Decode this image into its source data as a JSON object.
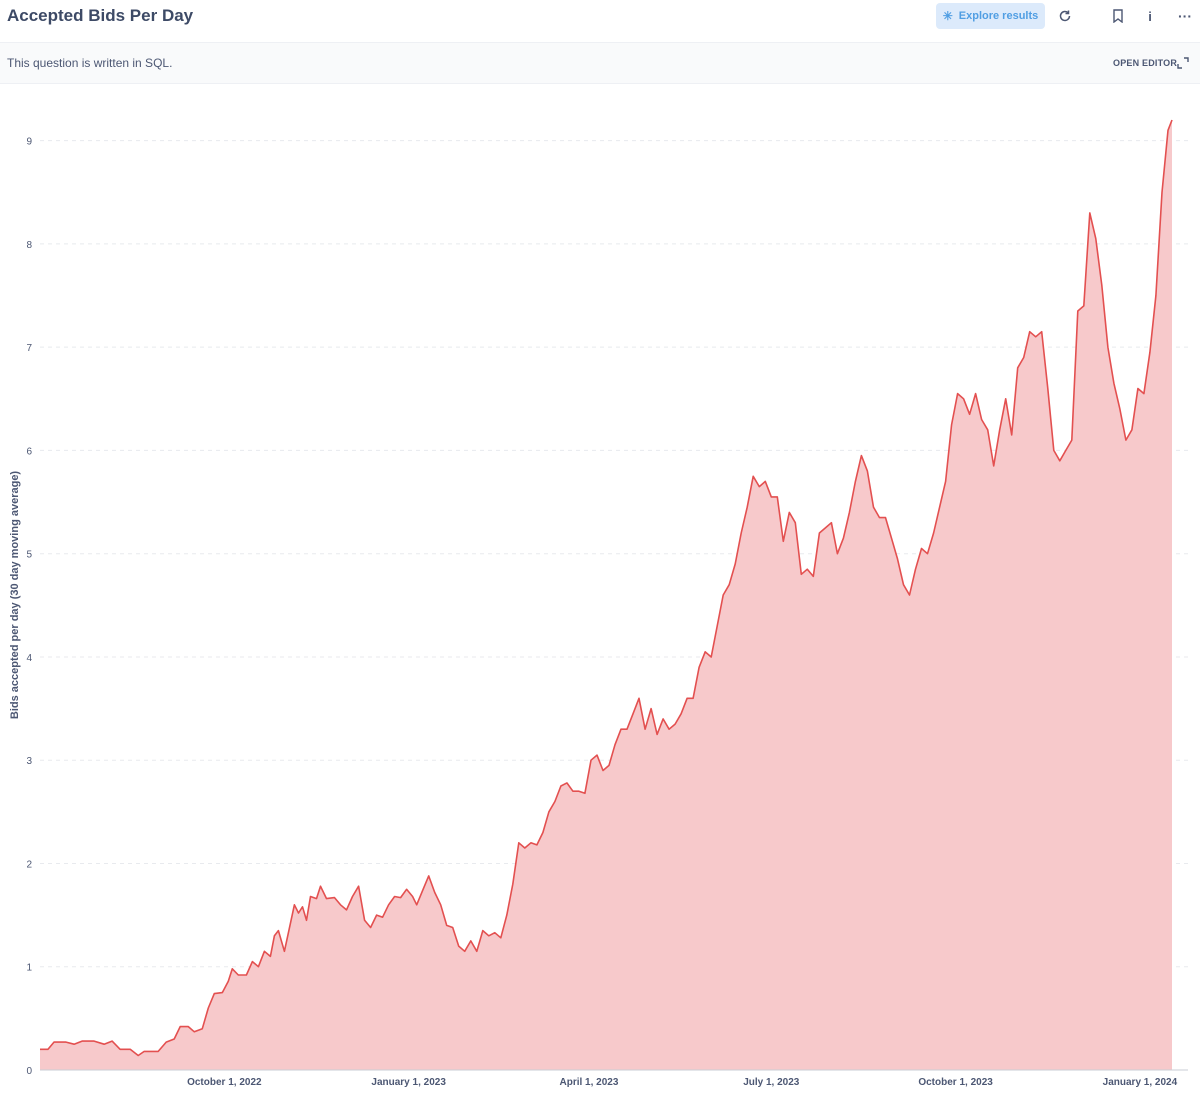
{
  "header": {
    "title": "Accepted Bids Per Day",
    "explore_label": "Explore results",
    "icons": [
      "refresh-icon",
      "bookmark-icon",
      "info-icon",
      "more-icon"
    ]
  },
  "subbar": {
    "text": "This question is written in SQL.",
    "open_editor_label": "OPEN EDITOR"
  },
  "colors": {
    "line": "#e35050",
    "fill": "#f7c9cb",
    "accent": "#509ee3"
  },
  "chart_data": {
    "type": "area",
    "ylabel": "Bids accepted per day (30 day moving average)",
    "xlabel": "",
    "ylim": [
      0,
      9.2
    ],
    "yticks": [
      0,
      1,
      2,
      3,
      4,
      5,
      6,
      7,
      8,
      9
    ],
    "xlim": [
      "2022-07-01",
      "2024-01-25"
    ],
    "xticks": [
      {
        "date": "2022-10-01",
        "label": "October 1, 2022"
      },
      {
        "date": "2023-01-01",
        "label": "January 1, 2023"
      },
      {
        "date": "2023-04-01",
        "label": "April 1, 2023"
      },
      {
        "date": "2023-07-01",
        "label": "July 1, 2023"
      },
      {
        "date": "2023-10-01",
        "label": "October 1, 2023"
      },
      {
        "date": "2024-01-01",
        "label": "January 1, 2024"
      }
    ],
    "grid": true,
    "series": [
      {
        "points": [
          [
            "2022-07-01",
            0.2
          ],
          [
            "2022-07-05",
            0.2
          ],
          [
            "2022-07-08",
            0.27
          ],
          [
            "2022-07-14",
            0.27
          ],
          [
            "2022-07-18",
            0.25
          ],
          [
            "2022-07-22",
            0.28
          ],
          [
            "2022-07-28",
            0.28
          ],
          [
            "2022-08-02",
            0.25
          ],
          [
            "2022-08-06",
            0.28
          ],
          [
            "2022-08-10",
            0.2
          ],
          [
            "2022-08-15",
            0.2
          ],
          [
            "2022-08-19",
            0.14
          ],
          [
            "2022-08-22",
            0.18
          ],
          [
            "2022-08-29",
            0.18
          ],
          [
            "2022-09-02",
            0.27
          ],
          [
            "2022-09-06",
            0.3
          ],
          [
            "2022-09-09",
            0.42
          ],
          [
            "2022-09-13",
            0.42
          ],
          [
            "2022-09-16",
            0.37
          ],
          [
            "2022-09-20",
            0.4
          ],
          [
            "2022-09-23",
            0.6
          ],
          [
            "2022-09-26",
            0.74
          ],
          [
            "2022-09-30",
            0.75
          ],
          [
            "2022-10-03",
            0.86
          ],
          [
            "2022-10-05",
            0.98
          ],
          [
            "2022-10-08",
            0.92
          ],
          [
            "2022-10-12",
            0.92
          ],
          [
            "2022-10-15",
            1.05
          ],
          [
            "2022-10-18",
            1.0
          ],
          [
            "2022-10-21",
            1.15
          ],
          [
            "2022-10-24",
            1.1
          ],
          [
            "2022-10-26",
            1.3
          ],
          [
            "2022-10-28",
            1.35
          ],
          [
            "2022-10-31",
            1.15
          ],
          [
            "2022-11-03",
            1.42
          ],
          [
            "2022-11-05",
            1.6
          ],
          [
            "2022-11-07",
            1.52
          ],
          [
            "2022-11-09",
            1.58
          ],
          [
            "2022-11-11",
            1.45
          ],
          [
            "2022-11-13",
            1.68
          ],
          [
            "2022-11-16",
            1.66
          ],
          [
            "2022-11-18",
            1.78
          ],
          [
            "2022-11-21",
            1.66
          ],
          [
            "2022-11-25",
            1.67
          ],
          [
            "2022-11-28",
            1.6
          ],
          [
            "2022-12-01",
            1.55
          ],
          [
            "2022-12-04",
            1.68
          ],
          [
            "2022-12-07",
            1.78
          ],
          [
            "2022-12-10",
            1.45
          ],
          [
            "2022-12-13",
            1.38
          ],
          [
            "2022-12-16",
            1.5
          ],
          [
            "2022-12-19",
            1.48
          ],
          [
            "2022-12-22",
            1.6
          ],
          [
            "2022-12-25",
            1.68
          ],
          [
            "2022-12-28",
            1.67
          ],
          [
            "2022-12-31",
            1.75
          ],
          [
            "2023-01-03",
            1.68
          ],
          [
            "2023-01-05",
            1.6
          ],
          [
            "2023-01-08",
            1.74
          ],
          [
            "2023-01-11",
            1.88
          ],
          [
            "2023-01-14",
            1.72
          ],
          [
            "2023-01-17",
            1.6
          ],
          [
            "2023-01-20",
            1.4
          ],
          [
            "2023-01-23",
            1.38
          ],
          [
            "2023-01-26",
            1.2
          ],
          [
            "2023-01-29",
            1.15
          ],
          [
            "2023-02-01",
            1.25
          ],
          [
            "2023-02-04",
            1.15
          ],
          [
            "2023-02-07",
            1.35
          ],
          [
            "2023-02-10",
            1.3
          ],
          [
            "2023-02-13",
            1.33
          ],
          [
            "2023-02-16",
            1.28
          ],
          [
            "2023-02-19",
            1.5
          ],
          [
            "2023-02-22",
            1.8
          ],
          [
            "2023-02-25",
            2.2
          ],
          [
            "2023-02-28",
            2.15
          ],
          [
            "2023-03-03",
            2.2
          ],
          [
            "2023-03-06",
            2.18
          ],
          [
            "2023-03-09",
            2.3
          ],
          [
            "2023-03-12",
            2.5
          ],
          [
            "2023-03-15",
            2.6
          ],
          [
            "2023-03-18",
            2.75
          ],
          [
            "2023-03-21",
            2.78
          ],
          [
            "2023-03-24",
            2.7
          ],
          [
            "2023-03-27",
            2.7
          ],
          [
            "2023-03-30",
            2.68
          ],
          [
            "2023-04-02",
            3.0
          ],
          [
            "2023-04-05",
            3.05
          ],
          [
            "2023-04-08",
            2.9
          ],
          [
            "2023-04-11",
            2.95
          ],
          [
            "2023-04-14",
            3.15
          ],
          [
            "2023-04-17",
            3.3
          ],
          [
            "2023-04-20",
            3.3
          ],
          [
            "2023-04-23",
            3.45
          ],
          [
            "2023-04-26",
            3.6
          ],
          [
            "2023-04-29",
            3.3
          ],
          [
            "2023-05-02",
            3.5
          ],
          [
            "2023-05-05",
            3.25
          ],
          [
            "2023-05-08",
            3.4
          ],
          [
            "2023-05-11",
            3.3
          ],
          [
            "2023-05-14",
            3.35
          ],
          [
            "2023-05-17",
            3.45
          ],
          [
            "2023-05-20",
            3.6
          ],
          [
            "2023-05-23",
            3.6
          ],
          [
            "2023-05-26",
            3.9
          ],
          [
            "2023-05-29",
            4.05
          ],
          [
            "2023-06-01",
            4.0
          ],
          [
            "2023-06-04",
            4.3
          ],
          [
            "2023-06-07",
            4.6
          ],
          [
            "2023-06-10",
            4.7
          ],
          [
            "2023-06-13",
            4.9
          ],
          [
            "2023-06-16",
            5.2
          ],
          [
            "2023-06-19",
            5.45
          ],
          [
            "2023-06-22",
            5.75
          ],
          [
            "2023-06-25",
            5.65
          ],
          [
            "2023-06-28",
            5.7
          ],
          [
            "2023-07-01",
            5.55
          ],
          [
            "2023-07-04",
            5.55
          ],
          [
            "2023-07-07",
            5.12
          ],
          [
            "2023-07-10",
            5.4
          ],
          [
            "2023-07-13",
            5.3
          ],
          [
            "2023-07-16",
            4.8
          ],
          [
            "2023-07-19",
            4.85
          ],
          [
            "2023-07-22",
            4.78
          ],
          [
            "2023-07-25",
            5.2
          ],
          [
            "2023-07-28",
            5.25
          ],
          [
            "2023-07-31",
            5.3
          ],
          [
            "2023-08-03",
            5.0
          ],
          [
            "2023-08-06",
            5.15
          ],
          [
            "2023-08-09",
            5.4
          ],
          [
            "2023-08-12",
            5.7
          ],
          [
            "2023-08-15",
            5.95
          ],
          [
            "2023-08-18",
            5.8
          ],
          [
            "2023-08-21",
            5.45
          ],
          [
            "2023-08-24",
            5.35
          ],
          [
            "2023-08-27",
            5.35
          ],
          [
            "2023-08-30",
            5.15
          ],
          [
            "2023-09-02",
            4.95
          ],
          [
            "2023-09-05",
            4.7
          ],
          [
            "2023-09-08",
            4.6
          ],
          [
            "2023-09-11",
            4.85
          ],
          [
            "2023-09-14",
            5.05
          ],
          [
            "2023-09-17",
            5.0
          ],
          [
            "2023-09-20",
            5.2
          ],
          [
            "2023-09-23",
            5.45
          ],
          [
            "2023-09-26",
            5.7
          ],
          [
            "2023-09-29",
            6.25
          ],
          [
            "2023-10-02",
            6.55
          ],
          [
            "2023-10-05",
            6.5
          ],
          [
            "2023-10-08",
            6.35
          ],
          [
            "2023-10-11",
            6.55
          ],
          [
            "2023-10-14",
            6.3
          ],
          [
            "2023-10-17",
            6.2
          ],
          [
            "2023-10-20",
            5.85
          ],
          [
            "2023-10-23",
            6.2
          ],
          [
            "2023-10-26",
            6.5
          ],
          [
            "2023-10-29",
            6.15
          ],
          [
            "2023-11-01",
            6.8
          ],
          [
            "2023-11-04",
            6.9
          ],
          [
            "2023-11-07",
            7.15
          ],
          [
            "2023-11-10",
            7.1
          ],
          [
            "2023-11-13",
            7.15
          ],
          [
            "2023-11-16",
            6.6
          ],
          [
            "2023-11-19",
            6.0
          ],
          [
            "2023-11-22",
            5.9
          ],
          [
            "2023-11-25",
            6.0
          ],
          [
            "2023-11-28",
            6.1
          ],
          [
            "2023-12-01",
            7.35
          ],
          [
            "2023-12-04",
            7.4
          ],
          [
            "2023-12-07",
            8.3
          ],
          [
            "2023-12-10",
            8.05
          ],
          [
            "2023-12-13",
            7.6
          ],
          [
            "2023-12-16",
            7.0
          ],
          [
            "2023-12-19",
            6.65
          ],
          [
            "2023-12-22",
            6.4
          ],
          [
            "2023-12-25",
            6.1
          ],
          [
            "2023-12-28",
            6.2
          ],
          [
            "2023-12-31",
            6.6
          ],
          [
            "2024-01-03",
            6.55
          ],
          [
            "2024-01-06",
            6.95
          ],
          [
            "2024-01-09",
            7.5
          ],
          [
            "2024-01-12",
            8.5
          ],
          [
            "2024-01-15",
            9.1
          ],
          [
            "2024-01-17",
            9.2
          ]
        ]
      }
    ]
  }
}
